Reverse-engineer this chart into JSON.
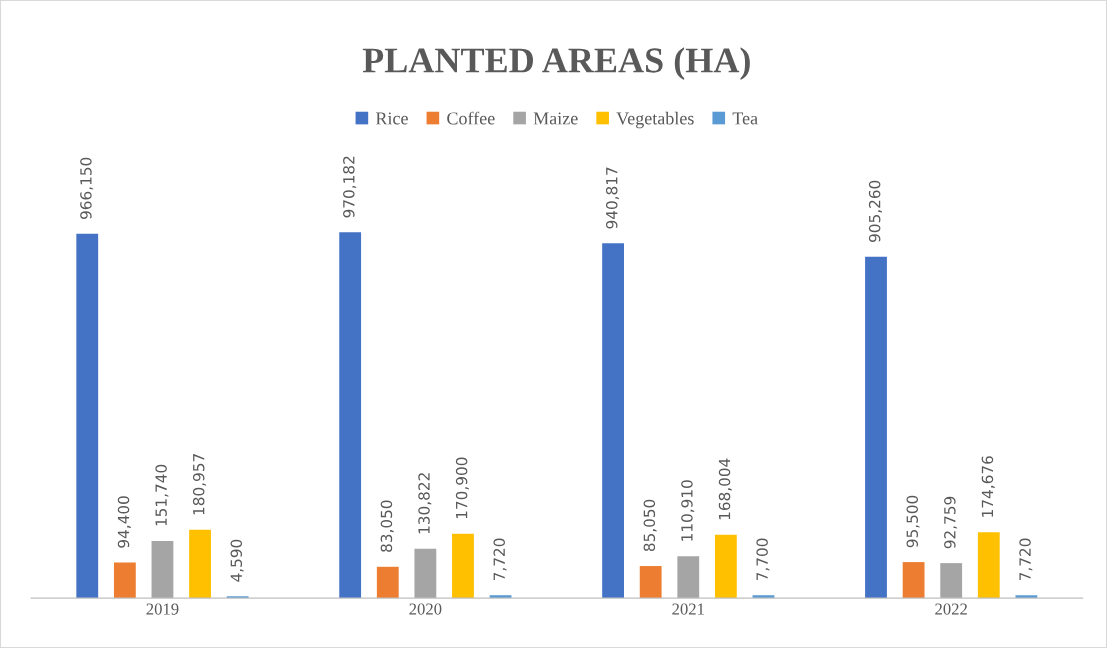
{
  "chart_data": {
    "type": "bar",
    "title": "PLANTED AREAS (HA)",
    "categories": [
      "2019",
      "2020",
      "2021",
      "2022"
    ],
    "series": [
      {
        "name": "Rice",
        "color": "#4472c4",
        "values": [
          966150,
          970182,
          940817,
          905260
        ],
        "value_labels": [
          "966,150",
          "970,182",
          "940,817",
          "905,260"
        ]
      },
      {
        "name": "Coffee",
        "color": "#ed7d31",
        "values": [
          94400,
          83050,
          85050,
          95500
        ],
        "value_labels": [
          "94,400",
          "83,050",
          "85,050",
          "95,500"
        ]
      },
      {
        "name": "Maize",
        "color": "#a5a5a5",
        "values": [
          151740,
          130822,
          110910,
          92759
        ],
        "value_labels": [
          "151,740",
          "130,822",
          "110,910",
          "92,759"
        ]
      },
      {
        "name": "Vegetables",
        "color": "#ffc000",
        "values": [
          180957,
          170900,
          168004,
          174676
        ],
        "value_labels": [
          "180,957",
          "170,900",
          "168,004",
          "174,676"
        ]
      },
      {
        "name": "Tea",
        "color": "#5b9bd5",
        "values": [
          4590,
          7720,
          7700,
          7720
        ],
        "value_labels": [
          "4,590",
          "7,720",
          "7,700",
          "7,720"
        ]
      }
    ],
    "legend": "top",
    "tick_labels": "x"
  }
}
